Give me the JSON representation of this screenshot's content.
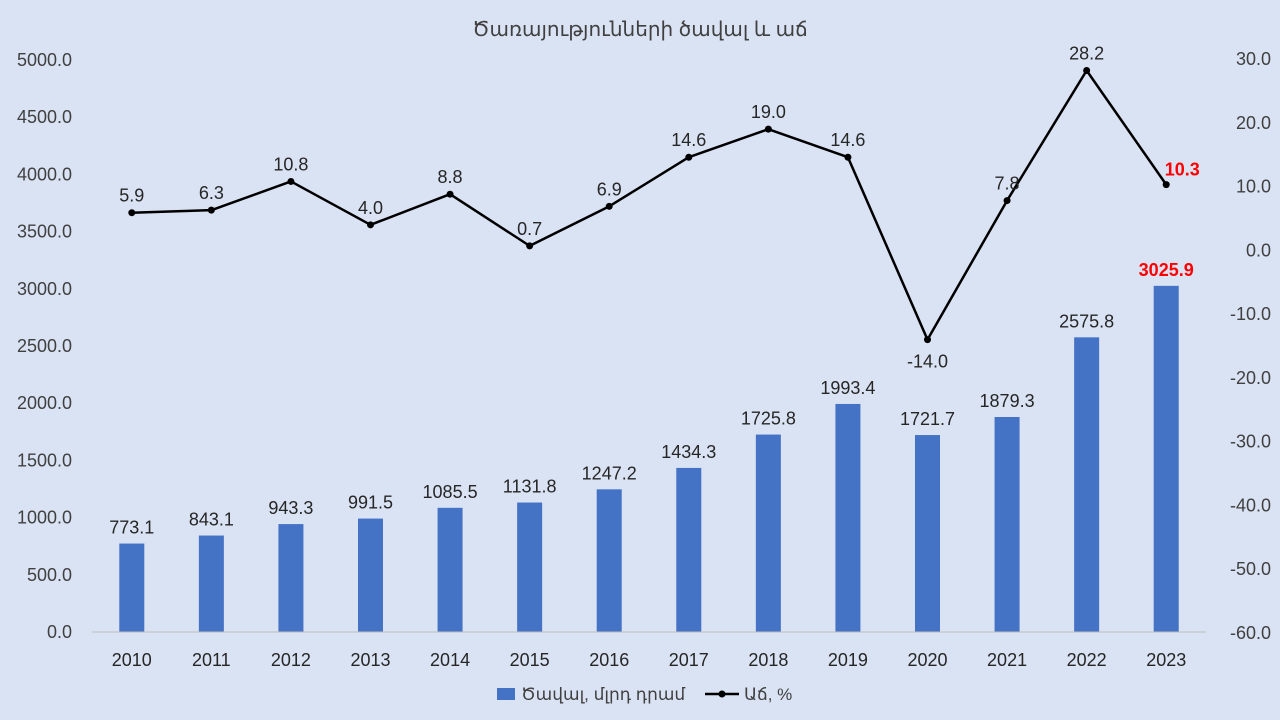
{
  "chart_data": {
    "type": "bar",
    "title": "Ծառայությունների ծավալ և աճ",
    "categories": [
      "2010",
      "2011",
      "2012",
      "2013",
      "2014",
      "2015",
      "2016",
      "2017",
      "2018",
      "2019",
      "2020",
      "2021",
      "2022",
      "2023"
    ],
    "series": [
      {
        "name": "Ծավալ, մլրդ դրամ",
        "type": "bar",
        "axis": "left",
        "color": "#4472c4",
        "values": [
          773.1,
          843.1,
          943.3,
          991.5,
          1085.5,
          1131.8,
          1247.2,
          1434.3,
          1725.8,
          1993.4,
          1721.7,
          1879.3,
          2575.8,
          3025.9
        ],
        "labels": [
          "773.1",
          "843.1",
          "943.3",
          "991.5",
          "1085.5",
          "1131.8",
          "1247.2",
          "1434.3",
          "1725.8",
          "1993.4",
          "1721.7",
          "1879.3",
          "2575.8",
          "3025.9"
        ]
      },
      {
        "name": "Աճ, %",
        "type": "line",
        "axis": "right",
        "color": "#000000",
        "values": [
          5.9,
          6.3,
          10.8,
          4.0,
          8.8,
          0.7,
          6.9,
          14.6,
          19.0,
          14.6,
          -14.0,
          7.8,
          28.2,
          10.3
        ],
        "labels": [
          "5.9",
          "6.3",
          "10.8",
          "4.0",
          "8.8",
          "0.7",
          "6.9",
          "14.6",
          "19.0",
          "14.6",
          "-14.0",
          "7.8",
          "28.2",
          "10.3"
        ]
      }
    ],
    "y_left": {
      "ylim": [
        0,
        5000
      ],
      "ticks": [
        0,
        500,
        1000,
        1500,
        2000,
        2500,
        3000,
        3500,
        4000,
        4500,
        5000
      ],
      "tick_labels": [
        "0.0",
        "500.0",
        "1000.0",
        "1500.0",
        "2000.0",
        "2500.0",
        "3000.0",
        "3500.0",
        "4000.0",
        "4500.0",
        "5000.0"
      ]
    },
    "y_right": {
      "ylim": [
        -60,
        30
      ],
      "ticks": [
        -60,
        -50,
        -40,
        -30,
        -20,
        -10,
        0,
        10,
        20,
        30
      ],
      "tick_labels": [
        "-60.0",
        "-50.0",
        "-40.0",
        "-30.0",
        "-20.0",
        "-10.0",
        "0.0",
        "10.0",
        "20.0",
        "30.0"
      ]
    },
    "highlight_color": "#ff0000",
    "highlight_index": 13,
    "grid": false,
    "legend": "bottom"
  }
}
